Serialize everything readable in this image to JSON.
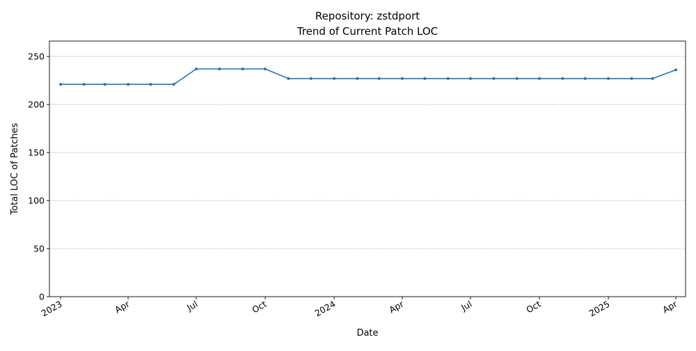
{
  "chart_data": {
    "type": "line",
    "title": "Repository: zstdport",
    "subtitle": "Trend of Current Patch LOC",
    "xlabel": "Date",
    "ylabel": "Total LOC of Patches",
    "ylim": [
      0,
      266
    ],
    "yticks": [
      0,
      50,
      100,
      150,
      200,
      250
    ],
    "xlim": [
      "2022-12-17",
      "2025-04-14"
    ],
    "xticks": [
      {
        "date": "2023-01-01",
        "label": "2023"
      },
      {
        "date": "2023-04-01",
        "label": "Apr"
      },
      {
        "date": "2023-07-01",
        "label": "Jul"
      },
      {
        "date": "2023-10-01",
        "label": "Oct"
      },
      {
        "date": "2024-01-01",
        "label": "2024"
      },
      {
        "date": "2024-04-01",
        "label": "Apr"
      },
      {
        "date": "2024-07-01",
        "label": "Jul"
      },
      {
        "date": "2024-10-01",
        "label": "Oct"
      },
      {
        "date": "2025-01-01",
        "label": "2025"
      },
      {
        "date": "2025-04-01",
        "label": "Apr"
      }
    ],
    "grid": "y",
    "color": "#1f77b4",
    "x": [
      "2023-01-01",
      "2023-02-01",
      "2023-03-01",
      "2023-04-01",
      "2023-05-01",
      "2023-06-01",
      "2023-07-01",
      "2023-08-01",
      "2023-09-01",
      "2023-10-01",
      "2023-11-01",
      "2023-12-01",
      "2024-01-01",
      "2024-02-01",
      "2024-03-01",
      "2024-04-01",
      "2024-05-01",
      "2024-06-01",
      "2024-07-01",
      "2024-08-01",
      "2024-09-01",
      "2024-10-01",
      "2024-11-01",
      "2024-12-01",
      "2025-01-01",
      "2025-02-01",
      "2025-03-01",
      "2025-04-01"
    ],
    "values": [
      221,
      221,
      221,
      221,
      221,
      221,
      237,
      237,
      237,
      237,
      227,
      227,
      227,
      227,
      227,
      227,
      227,
      227,
      227,
      227,
      227,
      227,
      227,
      227,
      227,
      227,
      227,
      236
    ]
  }
}
